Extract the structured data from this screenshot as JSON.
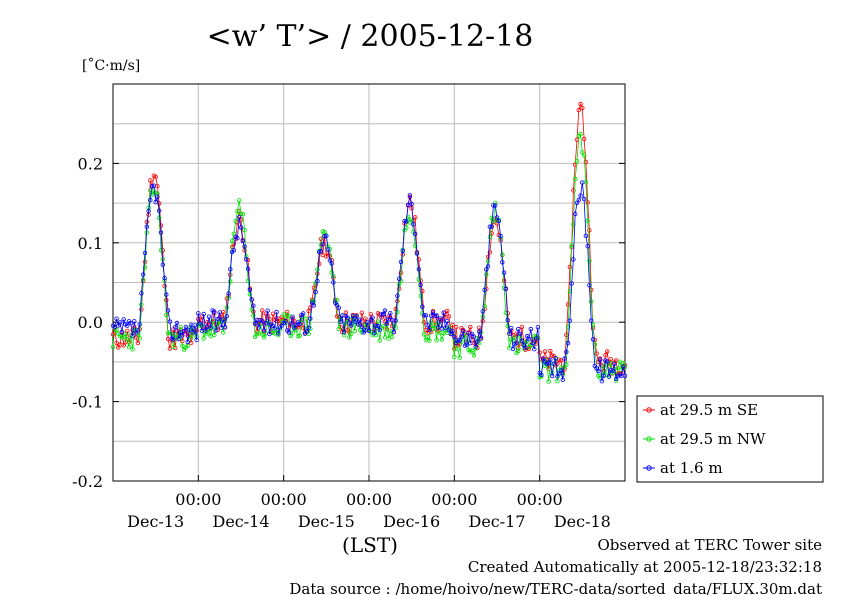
{
  "header": {
    "title": "<w’ T’> / 2005-12-18",
    "unit": "[˚C·m/s]"
  },
  "footer": {
    "line1": "Observed at TERC Tower site",
    "line2": "Created Automatically at 2005-12-18/23:32:18",
    "line3": "Data source : /home/hoivo/new/TERC-data/sorted_data/FLUX.30m.dat"
  },
  "chart_data": {
    "type": "line",
    "title": "<w’ T’> / 2005-12-18",
    "ylabel": "[˚C·m/s]",
    "xlabel": "(LST)",
    "xlim": [
      0,
      6
    ],
    "ylim": [
      -0.2,
      0.3
    ],
    "yticks": [
      0.2,
      0.1,
      0.0,
      -0.1,
      -0.2
    ],
    "ytick_labels": [
      "0.2",
      "0.1",
      "0.0",
      "-0.1",
      "-0.2"
    ],
    "xticks": [
      1,
      2,
      3,
      4,
      5
    ],
    "xtick_labels": [
      "00:00",
      "00:00",
      "00:00",
      "00:00",
      "00:00"
    ],
    "day_labels": [
      {
        "x": 0.5,
        "label": "Dec-13"
      },
      {
        "x": 1.5,
        "label": "Dec-14"
      },
      {
        "x": 2.5,
        "label": "Dec-15"
      },
      {
        "x": 3.5,
        "label": "Dec-16"
      },
      {
        "x": 4.5,
        "label": "Dec-17"
      },
      {
        "x": 5.5,
        "label": "Dec-18"
      }
    ],
    "grid": true,
    "legend_position": "lower-right-outside",
    "series": [
      {
        "name": "at 29.5 m SE",
        "color": "#ff0000",
        "peaks": [
          0.19,
          0.13,
          0.1,
          0.15,
          0.13,
          0.27
        ],
        "night": [
          -0.02,
          0.0,
          0.0,
          0.0,
          -0.02,
          -0.05
        ],
        "seed": 11
      },
      {
        "name": "at 29.5 m NW",
        "color": "#00e000",
        "peaks": [
          0.17,
          0.14,
          0.11,
          0.14,
          0.14,
          0.23
        ],
        "night": [
          -0.02,
          -0.01,
          -0.005,
          -0.01,
          -0.03,
          -0.06
        ],
        "seed": 23
      },
      {
        "name": "at 1.6 m",
        "color": "#0000ff",
        "peaks": [
          0.17,
          0.12,
          0.1,
          0.15,
          0.14,
          0.17
        ],
        "night": [
          -0.01,
          0.0,
          0.0,
          0.0,
          -0.02,
          -0.06
        ],
        "seed": 37
      }
    ]
  }
}
